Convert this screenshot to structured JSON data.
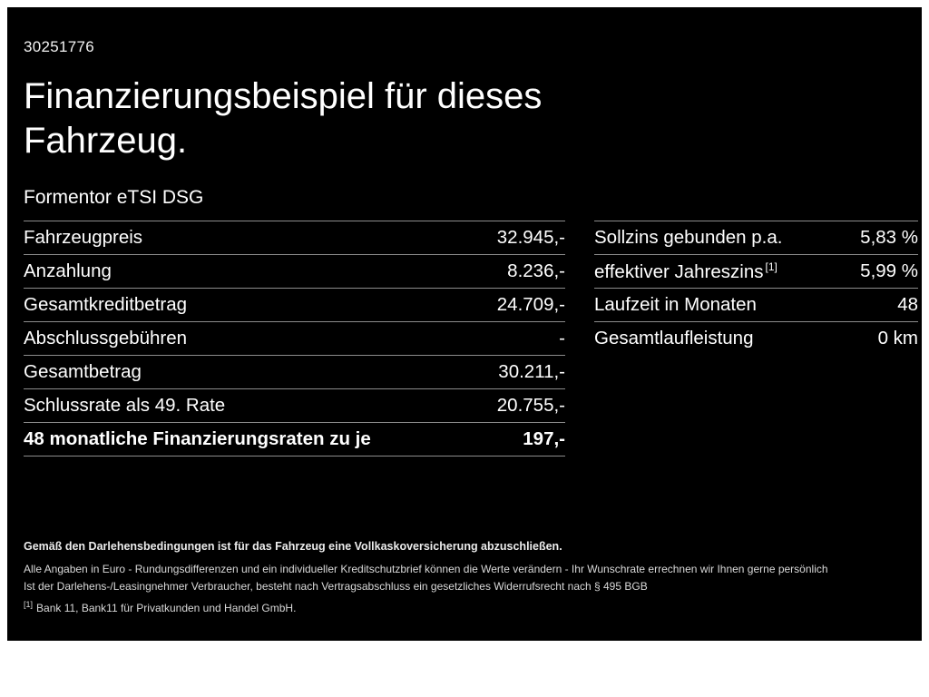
{
  "page": {
    "vehicle_id": "30251776",
    "title_line1": "Finanzierungsbeispiel für dieses",
    "title_line2": "Fahrzeug.",
    "subtitle": "Formentor eTSI DSG"
  },
  "left_table": {
    "rows": [
      {
        "label": "Fahrzeugpreis",
        "value": "32.945,-"
      },
      {
        "label": "Anzahlung",
        "value": "8.236,-"
      },
      {
        "label": "Gesamtkreditbetrag",
        "value": "24.709,-"
      },
      {
        "label": "Abschlussgebühren",
        "value": "-"
      },
      {
        "label": "Gesamtbetrag",
        "value": "30.211,-"
      },
      {
        "label": "Schlussrate als 49. Rate",
        "value": "20.755,-"
      },
      {
        "label": "48 monatliche Finanzierungsraten zu je",
        "value": "197,-"
      }
    ]
  },
  "right_table": {
    "rows": [
      {
        "label": "Sollzins gebunden p.a.",
        "value": "5,83 %"
      },
      {
        "label": "effektiver Jahreszins",
        "sup": "[1]",
        "value": "5,99 %"
      },
      {
        "label": "Laufzeit in Monaten",
        "value": "48"
      },
      {
        "label": "Gesamtlaufleistung",
        "value": "0 km"
      }
    ]
  },
  "footer": {
    "line_bold": "Gemäß den Darlehensbedingungen ist für das Fahrzeug eine Vollkaskoversicherung abzuschließen.",
    "line2": "Alle Angaben in Euro - Rundungsdifferenzen und ein individueller Kreditschutzbrief können die Werte verändern - Ihr Wunschrate errechnen wir Ihnen gerne persönlich",
    "line3": "Ist der Darlehens-/Leasingnehmer Verbraucher, besteht nach Vertragsabschluss ein gesetzliches Widerrufsrecht nach § 495 BGB",
    "footnote_marker": "[1]",
    "footnote_text": "Bank 11, Bank11 für Privatkunden und Handel GmbH."
  },
  "colors": {
    "background": "#000000",
    "frame": "#ffffff",
    "text": "#ffffff",
    "divider": "#8c8c8c"
  }
}
